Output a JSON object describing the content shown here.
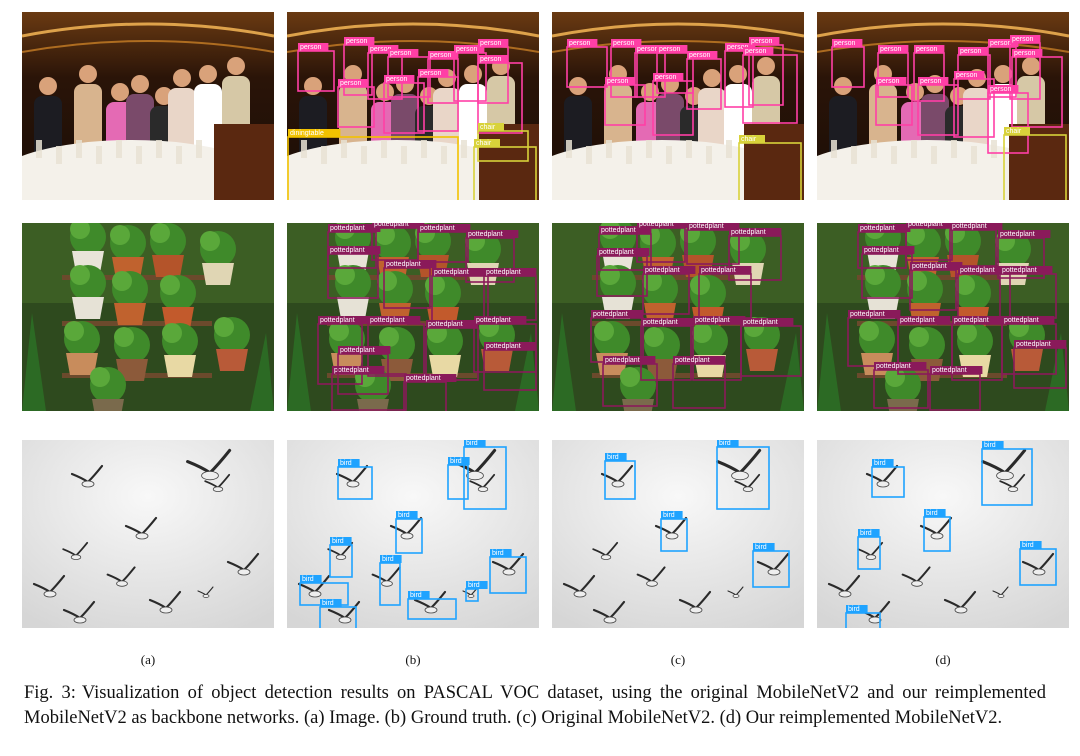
{
  "figure": {
    "caption_prefix": "Fig. 3:",
    "caption_text": "Visualization of object detection results on PASCAL VOC dataset, using the original MobileNetV2 and our reimplemented MobileNetV2 as backbone networks. (a) Image. (b) Ground truth. (c) Original MobileNetV2. (d) Our reimplemented MobileNetV2.",
    "column_labels": [
      "(a)",
      "(b)",
      "(c)",
      "(d)"
    ],
    "scenes": [
      {
        "scene": "dining table group photo",
        "class": "person",
        "color": "#ff3fa6"
      },
      {
        "scene": "potted plants on shelves",
        "class": "pottedplant",
        "color": "#8a1a5a"
      },
      {
        "scene": "flock of birds in sky",
        "class": "bird",
        "color": "#1fa3ff"
      }
    ],
    "detections": {
      "b": {
        "row1": [
          {
            "label": "person"
          },
          {
            "label": "person"
          },
          {
            "label": "person"
          },
          {
            "label": "person"
          },
          {
            "label": "person"
          },
          {
            "label": "person"
          },
          {
            "label": "person"
          },
          {
            "label": "person"
          },
          {
            "label": "person"
          },
          {
            "label": "person"
          },
          {
            "label": "person"
          },
          {
            "label": "diningtable"
          },
          {
            "label": "chair"
          },
          {
            "label": "chair"
          }
        ],
        "row2": [
          {
            "label": "pottedplant"
          },
          {
            "label": "pottedplant"
          },
          {
            "label": "pottedplant"
          },
          {
            "label": "pottedplant"
          },
          {
            "label": "pottedplant"
          },
          {
            "label": "pottedplant"
          },
          {
            "label": "pottedplant"
          },
          {
            "label": "pottedplant"
          },
          {
            "label": "pottedplant"
          },
          {
            "label": "pottedplant"
          },
          {
            "label": "pottedplant"
          },
          {
            "label": "pottedplant"
          },
          {
            "label": "pottedplant"
          },
          {
            "label": "pottedplant"
          },
          {
            "label": "pottedplant"
          },
          {
            "label": "pottedplant"
          }
        ],
        "row3": [
          {
            "label": "bird"
          },
          {
            "label": "bird"
          },
          {
            "label": "bird"
          },
          {
            "label": "bird"
          },
          {
            "label": "bird"
          },
          {
            "label": "bird"
          },
          {
            "label": "bird"
          },
          {
            "label": "bird"
          },
          {
            "label": "bird"
          },
          {
            "label": "bird"
          },
          {
            "label": "bird"
          }
        ]
      },
      "c": {
        "row1": [
          {
            "label": "person"
          },
          {
            "label": "person"
          },
          {
            "label": "person"
          },
          {
            "label": "person"
          },
          {
            "label": "person"
          },
          {
            "label": "person"
          },
          {
            "label": "person"
          },
          {
            "label": "person"
          },
          {
            "label": "person"
          },
          {
            "label": "person"
          },
          {
            "label": "chair"
          }
        ],
        "row2": [
          {
            "label": "pottedplant"
          },
          {
            "label": "pottedplant"
          },
          {
            "label": "pottedplant"
          },
          {
            "label": "pottedplant"
          },
          {
            "label": "pottedplant"
          },
          {
            "label": "pottedplant"
          },
          {
            "label": "pottedplant"
          },
          {
            "label": "pottedplant"
          },
          {
            "label": "pottedplant"
          },
          {
            "label": "pottedplant"
          },
          {
            "label": "pottedplant"
          },
          {
            "label": "pottedplant"
          },
          {
            "label": "pottedplant"
          }
        ],
        "row3": [
          {
            "label": "bird"
          },
          {
            "label": "bird"
          },
          {
            "label": "bird"
          },
          {
            "label": "bird"
          }
        ]
      },
      "d": {
        "row1": [
          {
            "label": "person"
          },
          {
            "label": "person"
          },
          {
            "label": "person"
          },
          {
            "label": "person"
          },
          {
            "label": "person"
          },
          {
            "label": "person"
          },
          {
            "label": "person"
          },
          {
            "label": "person"
          },
          {
            "label": "person"
          },
          {
            "label": "person"
          },
          {
            "label": "person"
          },
          {
            "label": "chair"
          }
        ],
        "row2": [
          {
            "label": "pottedplant"
          },
          {
            "label": "pottedplant"
          },
          {
            "label": "pottedplant"
          },
          {
            "label": "pottedplant"
          },
          {
            "label": "pottedplant"
          },
          {
            "label": "pottedplant"
          },
          {
            "label": "pottedplant"
          },
          {
            "label": "pottedplant"
          },
          {
            "label": "pottedplant"
          },
          {
            "label": "pottedplant"
          },
          {
            "label": "pottedplant"
          },
          {
            "label": "pottedplant"
          },
          {
            "label": "pottedplant"
          },
          {
            "label": "pottedplant"
          },
          {
            "label": "pottedplant"
          }
        ],
        "row3": [
          {
            "label": "bird"
          },
          {
            "label": "bird"
          },
          {
            "label": "bird"
          },
          {
            "label": "bird"
          },
          {
            "label": "bird"
          },
          {
            "label": "bird"
          }
        ]
      }
    },
    "colors": {
      "person": "#ff3fa6",
      "pottedplant": "#8a1a5a",
      "bird": "#1fa3ff",
      "chair": "#d8d23a",
      "diningtable": "#f2c200"
    }
  }
}
